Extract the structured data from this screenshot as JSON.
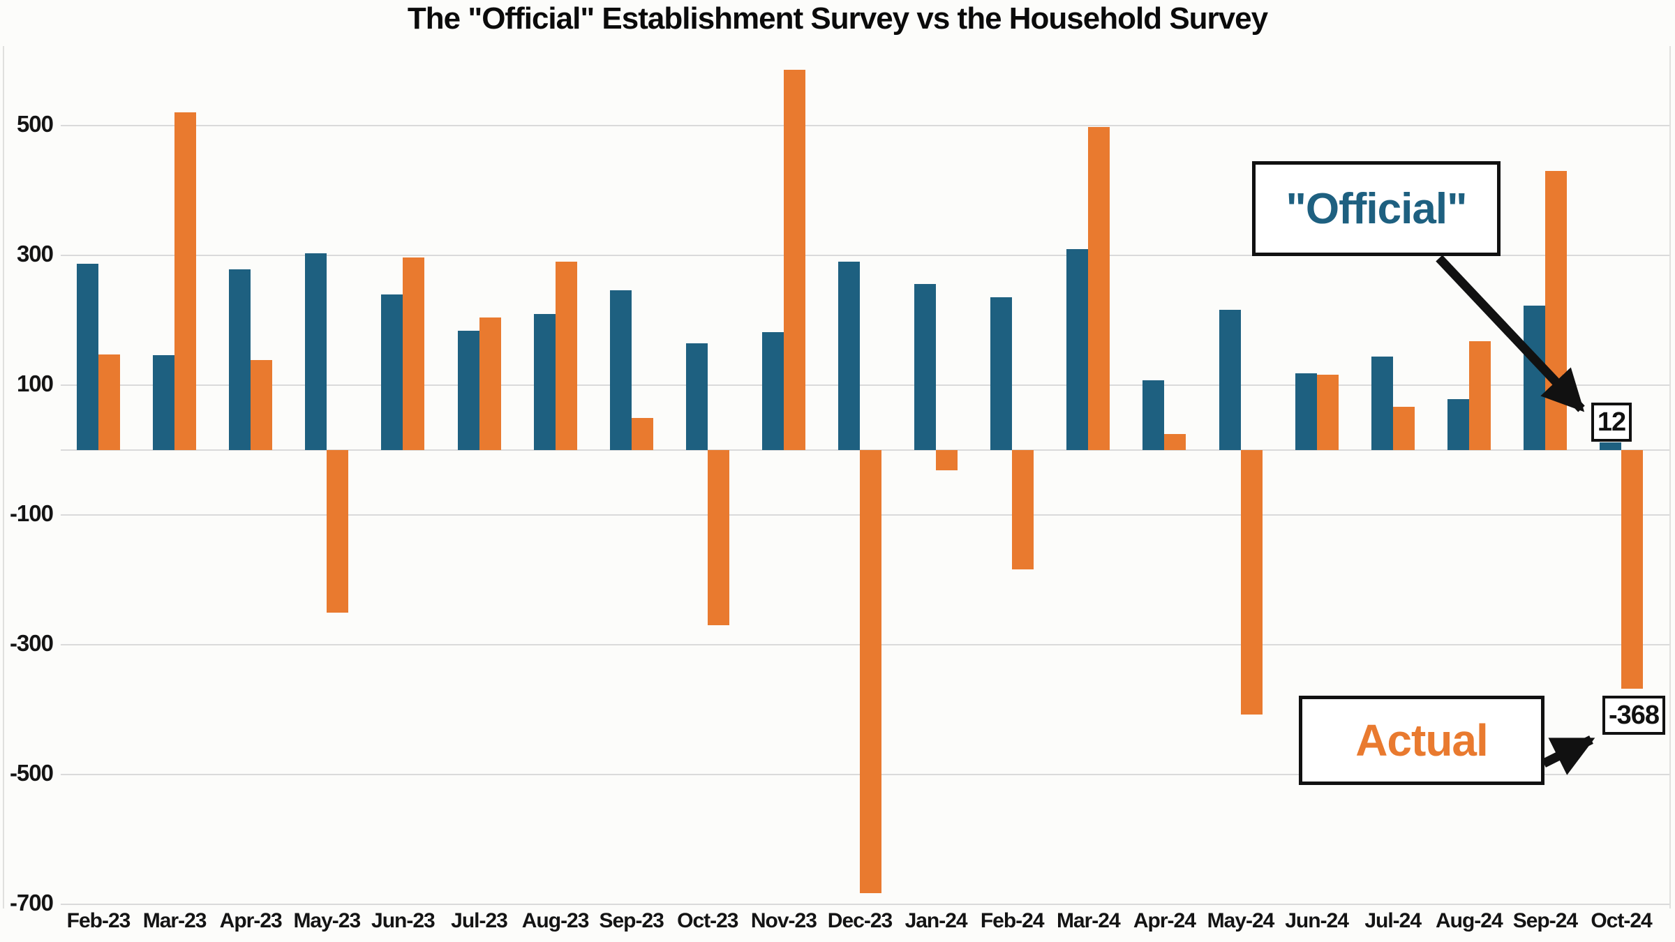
{
  "title": "The \"Official\" Establishment Survey vs the Household Survey",
  "chart_data": {
    "type": "bar",
    "categories": [
      "Feb-23",
      "Mar-23",
      "Apr-23",
      "May-23",
      "Jun-23",
      "Jul-23",
      "Aug-23",
      "Sep-23",
      "Oct-23",
      "Nov-23",
      "Dec-23",
      "Jan-24",
      "Feb-24",
      "Mar-24",
      "Apr-24",
      "May-24",
      "Jun-24",
      "Jul-24",
      "Aug-24",
      "Sep-24",
      "Oct-24"
    ],
    "series": [
      {
        "name": "Official",
        "description": "Establishment Survey (blue bars)",
        "color": "#1e6080",
        "values": [
          287,
          146,
          278,
          303,
          240,
          184,
          210,
          246,
          165,
          182,
          290,
          256,
          236,
          310,
          108,
          216,
          118,
          144,
          78,
          223,
          12
        ]
      },
      {
        "name": "Actual",
        "description": "Household Survey (orange bars)",
        "color": "#e97a2f",
        "values": [
          147,
          520,
          139,
          -250,
          297,
          204,
          290,
          50,
          -270,
          586,
          -683,
          -31,
          -184,
          498,
          25,
          -408,
          116,
          67,
          168,
          430,
          -368
        ]
      }
    ],
    "xlabel": "",
    "ylabel": "",
    "yticks": [
      500,
      300,
      100,
      -100,
      -300,
      -500,
      -700
    ],
    "ylim": [
      -756,
      612
    ],
    "grid": true,
    "legend_position": "none (annotated callout boxes instead)"
  },
  "annotations": {
    "official_label": "\"Official\"",
    "official_value": "12",
    "actual_label": "Actual",
    "actual_value": "-368"
  },
  "colors": {
    "official_bar": "#1e6080",
    "actual_bar": "#e97a2f",
    "gridline": "#dadada",
    "background": "#fcfcfa",
    "text": "#111111",
    "callout_border": "#111111"
  }
}
